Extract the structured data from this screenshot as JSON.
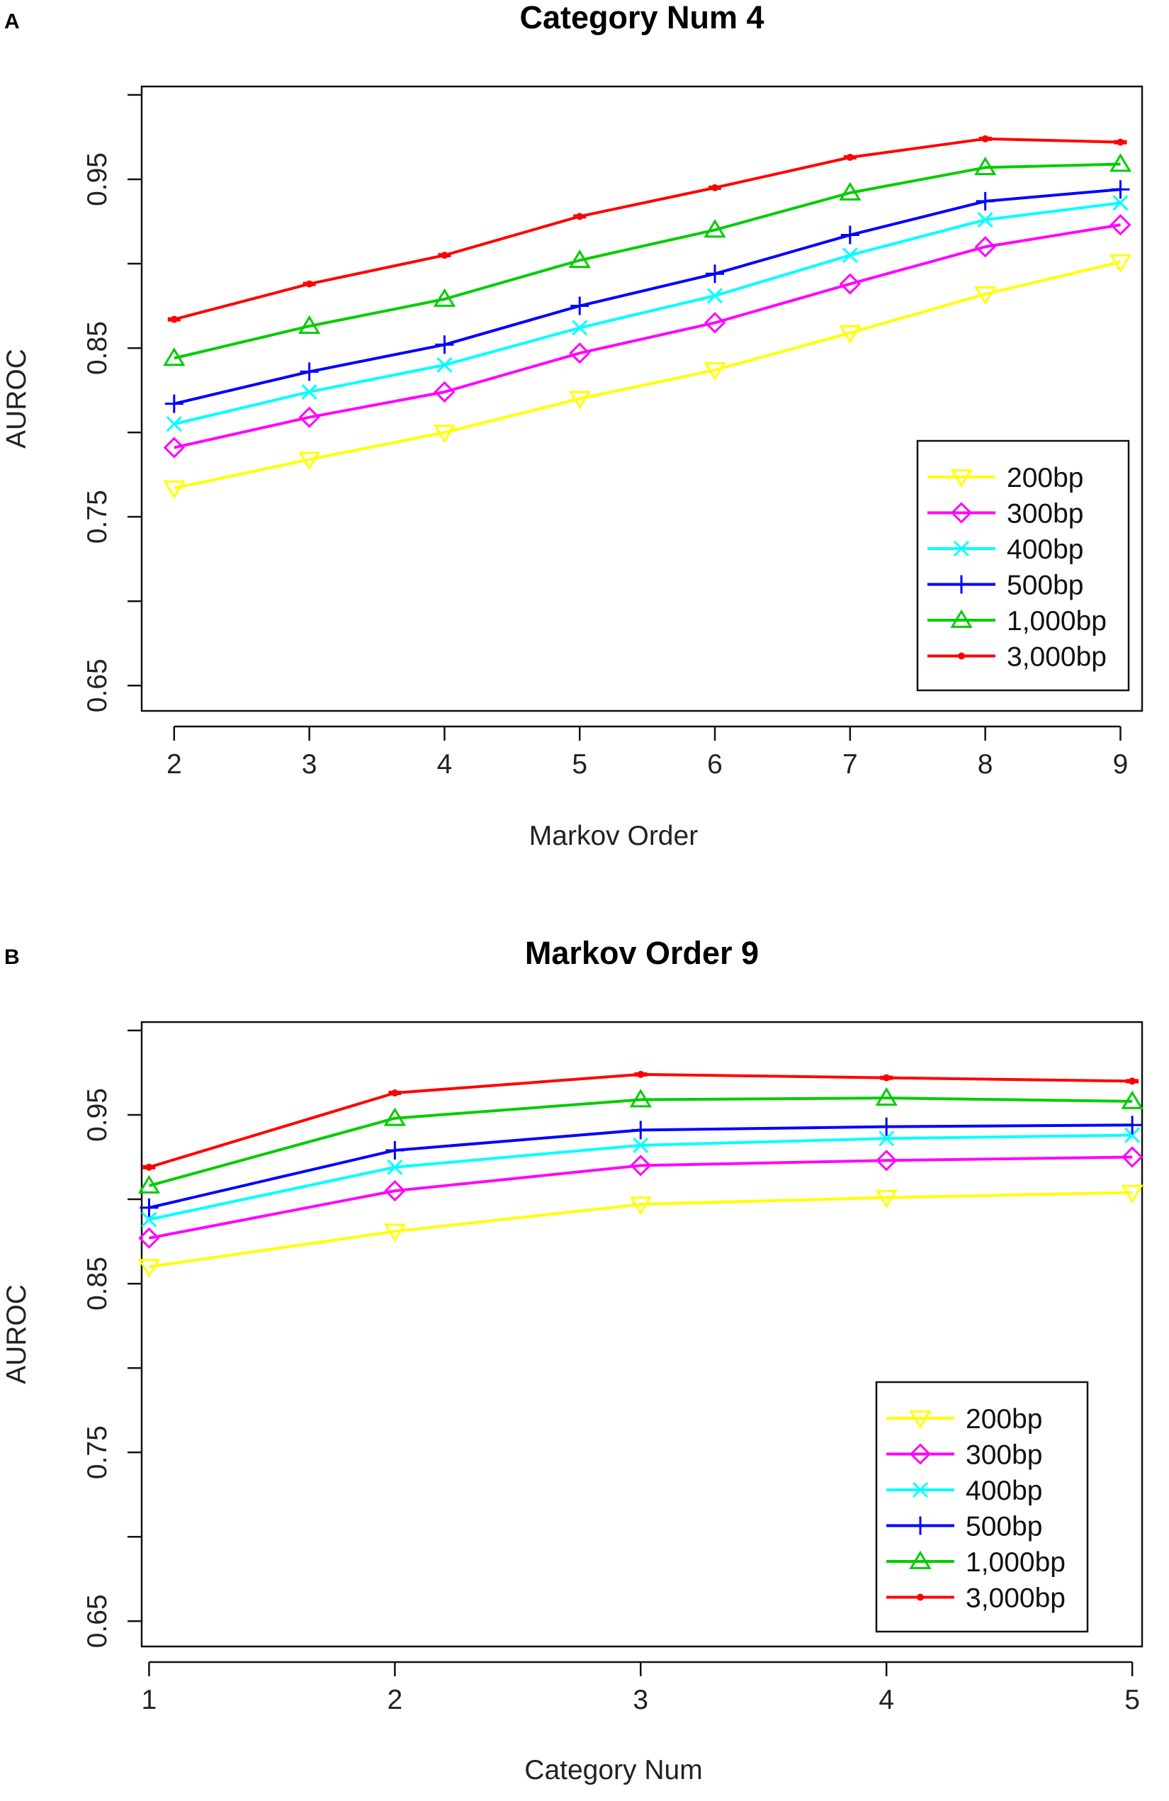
{
  "chart_data": [
    {
      "type": "line",
      "panel_label": "A",
      "title": "Category Num 4",
      "xlabel": "Markov Order",
      "ylabel": "AUROC",
      "x": [
        2,
        3,
        4,
        5,
        6,
        7,
        8,
        9
      ],
      "xtick_labels": [
        "2",
        "3",
        "4",
        "5",
        "6",
        "7",
        "8",
        "9"
      ],
      "xlim": [
        1.76,
        9.16
      ],
      "ylim": [
        0.635,
        1.005
      ],
      "ytick_values": [
        0.65,
        0.7,
        0.75,
        0.8,
        0.85,
        0.9,
        0.95,
        1.0
      ],
      "ytick_labels": [
        "0.65",
        "",
        "0.75",
        "",
        "0.85",
        "",
        "0.95",
        ""
      ],
      "legend_position": "bottom-right",
      "series": [
        {
          "name": "200bp",
          "color": "#ffff00",
          "marker": "triangle-down",
          "values": [
            0.767,
            0.784,
            0.8,
            0.82,
            0.837,
            0.859,
            0.882,
            0.901
          ]
        },
        {
          "name": "300bp",
          "color": "#ff00ff",
          "marker": "diamond",
          "values": [
            0.791,
            0.809,
            0.824,
            0.847,
            0.865,
            0.888,
            0.91,
            0.923
          ]
        },
        {
          "name": "400bp",
          "color": "#00ffff",
          "marker": "x",
          "values": [
            0.805,
            0.824,
            0.84,
            0.862,
            0.881,
            0.905,
            0.926,
            0.936
          ]
        },
        {
          "name": "500bp",
          "color": "#0000ff",
          "marker": "plus",
          "values": [
            0.817,
            0.836,
            0.852,
            0.875,
            0.894,
            0.917,
            0.937,
            0.944
          ]
        },
        {
          "name": "1,000bp",
          "color": "#00cd00",
          "marker": "triangle-up",
          "values": [
            0.844,
            0.863,
            0.879,
            0.902,
            0.92,
            0.942,
            0.957,
            0.959
          ]
        },
        {
          "name": "3,000bp",
          "color": "#ff0000",
          "marker": "dot",
          "values": [
            0.867,
            0.888,
            0.905,
            0.928,
            0.945,
            0.963,
            0.974,
            0.972
          ]
        }
      ]
    },
    {
      "type": "line",
      "panel_label": "B",
      "title": "Markov Order 9",
      "xlabel": "Category Num",
      "ylabel": "AUROC",
      "x": [
        1,
        2,
        3,
        4,
        5
      ],
      "xtick_labels": [
        "1",
        "2",
        "3",
        "4",
        "5"
      ],
      "xlim": [
        0.97,
        5.04
      ],
      "ylim": [
        0.635,
        1.005
      ],
      "ytick_values": [
        0.65,
        0.7,
        0.75,
        0.8,
        0.85,
        0.9,
        0.95,
        1.0
      ],
      "ytick_labels": [
        "0.65",
        "",
        "0.75",
        "",
        "0.85",
        "",
        "0.95",
        ""
      ],
      "legend_position": "bottom-right",
      "series": [
        {
          "name": "200bp",
          "color": "#ffff00",
          "marker": "triangle-down",
          "values": [
            0.86,
            0.881,
            0.897,
            0.901,
            0.904
          ]
        },
        {
          "name": "300bp",
          "color": "#ff00ff",
          "marker": "diamond",
          "values": [
            0.877,
            0.905,
            0.92,
            0.923,
            0.925
          ]
        },
        {
          "name": "400bp",
          "color": "#00ffff",
          "marker": "x",
          "values": [
            0.888,
            0.919,
            0.932,
            0.936,
            0.938
          ]
        },
        {
          "name": "500bp",
          "color": "#0000ff",
          "marker": "plus",
          "values": [
            0.895,
            0.929,
            0.941,
            0.943,
            0.944
          ]
        },
        {
          "name": "1,000bp",
          "color": "#00cd00",
          "marker": "triangle-up",
          "values": [
            0.908,
            0.948,
            0.959,
            0.96,
            0.958
          ]
        },
        {
          "name": "3,000bp",
          "color": "#ff0000",
          "marker": "dot",
          "values": [
            0.919,
            0.963,
            0.974,
            0.972,
            0.97
          ]
        }
      ]
    }
  ]
}
